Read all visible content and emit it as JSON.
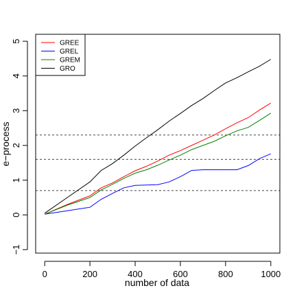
{
  "chart_data": {
    "type": "line",
    "title": "",
    "xlabel": "number of data",
    "ylabel": "e−process",
    "xlim": [
      -40,
      1040
    ],
    "ylim": [
      -1.1,
      5.2
    ],
    "xticks": [
      0,
      200,
      400,
      600,
      800,
      1000
    ],
    "yticks": [
      -1,
      0,
      1,
      2,
      3,
      4,
      5
    ],
    "xtick_labels": [
      "0",
      "200",
      "400",
      "600",
      "800",
      "1000"
    ],
    "ytick_labels": [
      "−1",
      "0",
      "1",
      "2",
      "3",
      "4",
      "5"
    ],
    "grid": false,
    "legend_position": "top-left",
    "hlines": [
      0.7,
      1.6,
      2.3
    ],
    "x": [
      0,
      100,
      200,
      250,
      300,
      350,
      400,
      450,
      500,
      550,
      600,
      650,
      700,
      750,
      800,
      850,
      900,
      950,
      1000
    ],
    "series": [
      {
        "name": "GREE",
        "color": "#ff0000",
        "values": [
          0.02,
          0.3,
          0.55,
          0.78,
          0.92,
          1.1,
          1.27,
          1.4,
          1.55,
          1.72,
          1.85,
          2.0,
          2.15,
          2.3,
          2.48,
          2.65,
          2.8,
          3.02,
          3.22
        ]
      },
      {
        "name": "GREL",
        "color": "#0000ff",
        "values": [
          0.02,
          0.12,
          0.22,
          0.45,
          0.62,
          0.78,
          0.85,
          0.86,
          0.87,
          0.95,
          1.1,
          1.28,
          1.3,
          1.3,
          1.3,
          1.3,
          1.42,
          1.62,
          1.76
        ]
      },
      {
        "name": "GREM",
        "color": "#008000",
        "values": [
          0.02,
          0.28,
          0.5,
          0.72,
          0.88,
          1.05,
          1.2,
          1.3,
          1.43,
          1.58,
          1.72,
          1.88,
          2.0,
          2.12,
          2.28,
          2.42,
          2.52,
          2.72,
          2.93
        ]
      },
      {
        "name": "GRO",
        "color": "#000000",
        "values": [
          0.05,
          0.5,
          0.95,
          1.28,
          1.48,
          1.72,
          1.98,
          2.22,
          2.45,
          2.7,
          2.92,
          3.15,
          3.35,
          3.58,
          3.8,
          3.95,
          4.12,
          4.28,
          4.48
        ]
      }
    ]
  }
}
